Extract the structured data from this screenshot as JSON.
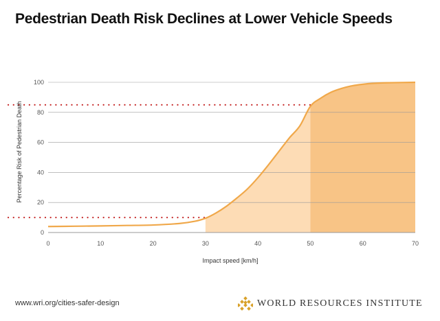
{
  "title": "Pedestrian Death Risk Declines at Lower Vehicle Speeds",
  "footer": {
    "url": "www.wri.org/cities-safer-design",
    "org": "WORLD RESOURCES INSTITUTE",
    "logo_icon": "wri-lattice-logo-icon"
  },
  "colors": {
    "curve": "#f0a84a",
    "band_light": "#fddcb5",
    "band_dark": "#f8c486",
    "dots": "#c62a2a",
    "grid": "#999999"
  },
  "chart_data": {
    "type": "line",
    "title": "Pedestrian Death Risk Declines at Lower Vehicle Speeds",
    "xlabel": "Impact speed [km/h]",
    "ylabel": "Percentage Risk of Pedestrian Death",
    "xlim": [
      0,
      70
    ],
    "ylim": [
      0,
      100
    ],
    "x_ticks": [
      0,
      10,
      20,
      30,
      40,
      50,
      60,
      70
    ],
    "y_ticks": [
      0,
      20,
      40,
      60,
      80,
      100
    ],
    "grid": true,
    "series": [
      {
        "x": [
          0,
          5,
          10,
          15,
          20,
          25,
          28,
          30,
          32,
          34,
          36,
          38,
          40,
          42,
          44,
          46,
          48,
          50,
          52,
          54,
          56,
          58,
          60,
          62,
          65,
          70
        ],
        "y": [
          4,
          4.2,
          4.4,
          4.7,
          5,
          6,
          7.5,
          9.5,
          13,
          17.5,
          23,
          29,
          36.5,
          45,
          54,
          63,
          71,
          84,
          89.5,
          93.5,
          96,
          97.7,
          98.7,
          99.3,
          99.7,
          100
        ]
      }
    ],
    "shaded_bands": [
      {
        "from": 30,
        "to": 50,
        "shade": "light"
      },
      {
        "from": 50,
        "to": 70,
        "shade": "dark"
      }
    ],
    "reference_lines": [
      {
        "y": 10,
        "x_from": 0,
        "x_to": 30,
        "style": "dotted"
      },
      {
        "y": 85,
        "x_from": 0,
        "x_to": 50,
        "style": "dotted"
      }
    ]
  }
}
